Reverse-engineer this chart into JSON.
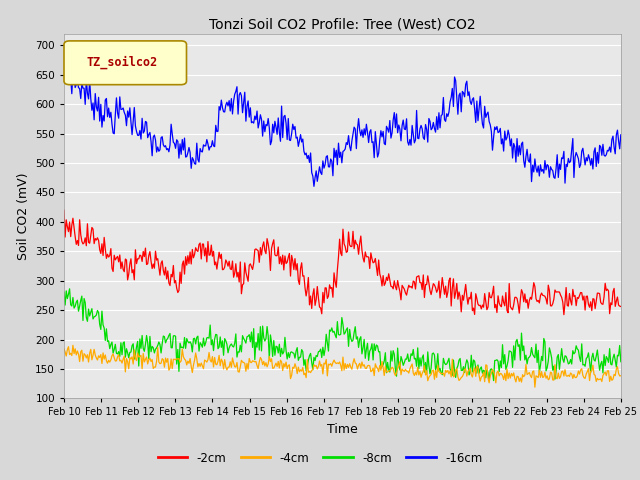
{
  "title": "Tonzi Soil CO2 Profile: Tree (West) CO2",
  "xlabel": "Time",
  "ylabel": "Soil CO2 (mV)",
  "ylim": [
    100,
    720
  ],
  "yticks": [
    100,
    150,
    200,
    250,
    300,
    350,
    400,
    450,
    500,
    550,
    600,
    650,
    700
  ],
  "legend_label": "TZ_soilco2",
  "legend_box_color": "#ffffcc",
  "legend_box_border": "#aa8800",
  "series_labels": [
    "-2cm",
    "-4cm",
    "-8cm",
    "-16cm"
  ],
  "series_colors": [
    "#ff0000",
    "#ffaa00",
    "#00dd00",
    "#0000ff"
  ],
  "xtick_labels": [
    "Feb 10",
    "Feb 11",
    "Feb 12",
    "Feb 13",
    "Feb 14",
    "Feb 15",
    "Feb 16",
    "Feb 17",
    "Feb 18",
    "Feb 19",
    "Feb 20",
    "Feb 21",
    "Feb 22",
    "Feb 23",
    "Feb 24",
    "Feb 25"
  ],
  "n_points": 500,
  "background_color": "#d8d8d8",
  "axes_bg_color": "#e8e8e8"
}
